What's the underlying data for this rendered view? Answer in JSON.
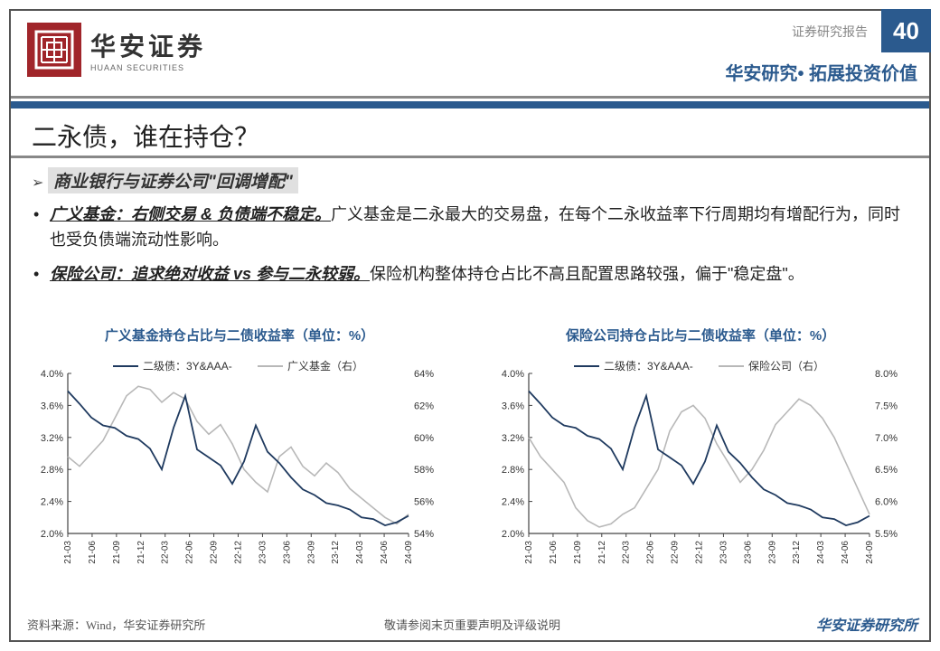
{
  "header": {
    "logo_cn": "华安证券",
    "logo_en": "HUAAN SECURITIES",
    "report_type": "证券研究报告",
    "page_number": "40",
    "brand_line_left": "华安研究",
    "brand_line_right": "拓展投资价值"
  },
  "title": "二永债，谁在持仓？",
  "subhead": "商业银行与证券公司\"回调增配\"",
  "bullets": [
    {
      "lead": "广义基金：右侧交易 & 负债端不稳定。",
      "rest": "广义基金是二永最大的交易盘，在每个二永收益率下行周期均有增配行为，同时也受负债端流动性影响。"
    },
    {
      "lead": "保险公司：追求绝对收益 vs 参与二永较弱。",
      "rest": "保险机构整体持仓占比不高且配置思路较强，偏于\"稳定盘\"。"
    }
  ],
  "chart_common": {
    "x_labels": [
      "21-03",
      "21-06",
      "21-09",
      "21-12",
      "22-03",
      "22-06",
      "22-09",
      "22-12",
      "23-03",
      "23-06",
      "23-09",
      "23-12",
      "24-03",
      "24-06",
      "24-09"
    ],
    "left_y_min": 2.0,
    "left_y_max": 4.0,
    "left_y_step": 0.4,
    "left_y_fmt": "pct1",
    "legend_dark_label": "二级债：3Y&AAA-",
    "line_dark_color": "#1f3a5f",
    "line_light_color": "#b8b8b8",
    "grid_color": "#cccccc",
    "axis_color": "#444444",
    "font_size_tick": 11,
    "font_size_legend": 12,
    "series_dark_yield": [
      3.78,
      3.62,
      3.45,
      3.35,
      3.32,
      3.22,
      3.18,
      3.06,
      2.8,
      3.32,
      3.72,
      3.05,
      2.95,
      2.85,
      2.62,
      2.9,
      3.35,
      3.02,
      2.88,
      2.7,
      2.55,
      2.48,
      2.38,
      2.35,
      2.3,
      2.2,
      2.18,
      2.1,
      2.14,
      2.22
    ]
  },
  "chart_left": {
    "title": "广义基金持仓占比与二债收益率（单位：%）",
    "legend_light_label": "广义基金（右）",
    "right_y_min": 54,
    "right_y_max": 64,
    "right_y_step": 2,
    "right_y_fmt": "pct0",
    "series_light": [
      58.8,
      58.2,
      59.0,
      59.8,
      61.2,
      62.6,
      63.2,
      63.0,
      62.2,
      62.8,
      62.4,
      61.0,
      60.2,
      60.8,
      59.6,
      58.0,
      57.2,
      56.6,
      58.8,
      59.4,
      58.2,
      57.6,
      58.4,
      57.8,
      56.8,
      56.2,
      55.6,
      55.0,
      54.6,
      55.2
    ]
  },
  "chart_right": {
    "title": "保险公司持仓占比与二债收益率（单位：%）",
    "legend_light_label": "保险公司（右）",
    "right_y_min": 5.5,
    "right_y_max": 8.0,
    "right_y_step": 0.5,
    "right_y_fmt": "pct1",
    "series_light": [
      7.0,
      6.7,
      6.5,
      6.3,
      5.9,
      5.7,
      5.6,
      5.65,
      5.8,
      5.9,
      6.2,
      6.5,
      7.1,
      7.4,
      7.5,
      7.3,
      6.9,
      6.6,
      6.3,
      6.5,
      6.8,
      7.2,
      7.4,
      7.6,
      7.5,
      7.3,
      7.0,
      6.6,
      6.2,
      5.8
    ]
  },
  "footer": {
    "source": "资料来源：Wind，华安证券研究所",
    "disclaimer": "敬请参阅末页重要声明及评级说明",
    "firm": "华安证券研究所"
  },
  "colors": {
    "brand_red": "#a0252a",
    "brand_blue": "#2b5a8e"
  }
}
